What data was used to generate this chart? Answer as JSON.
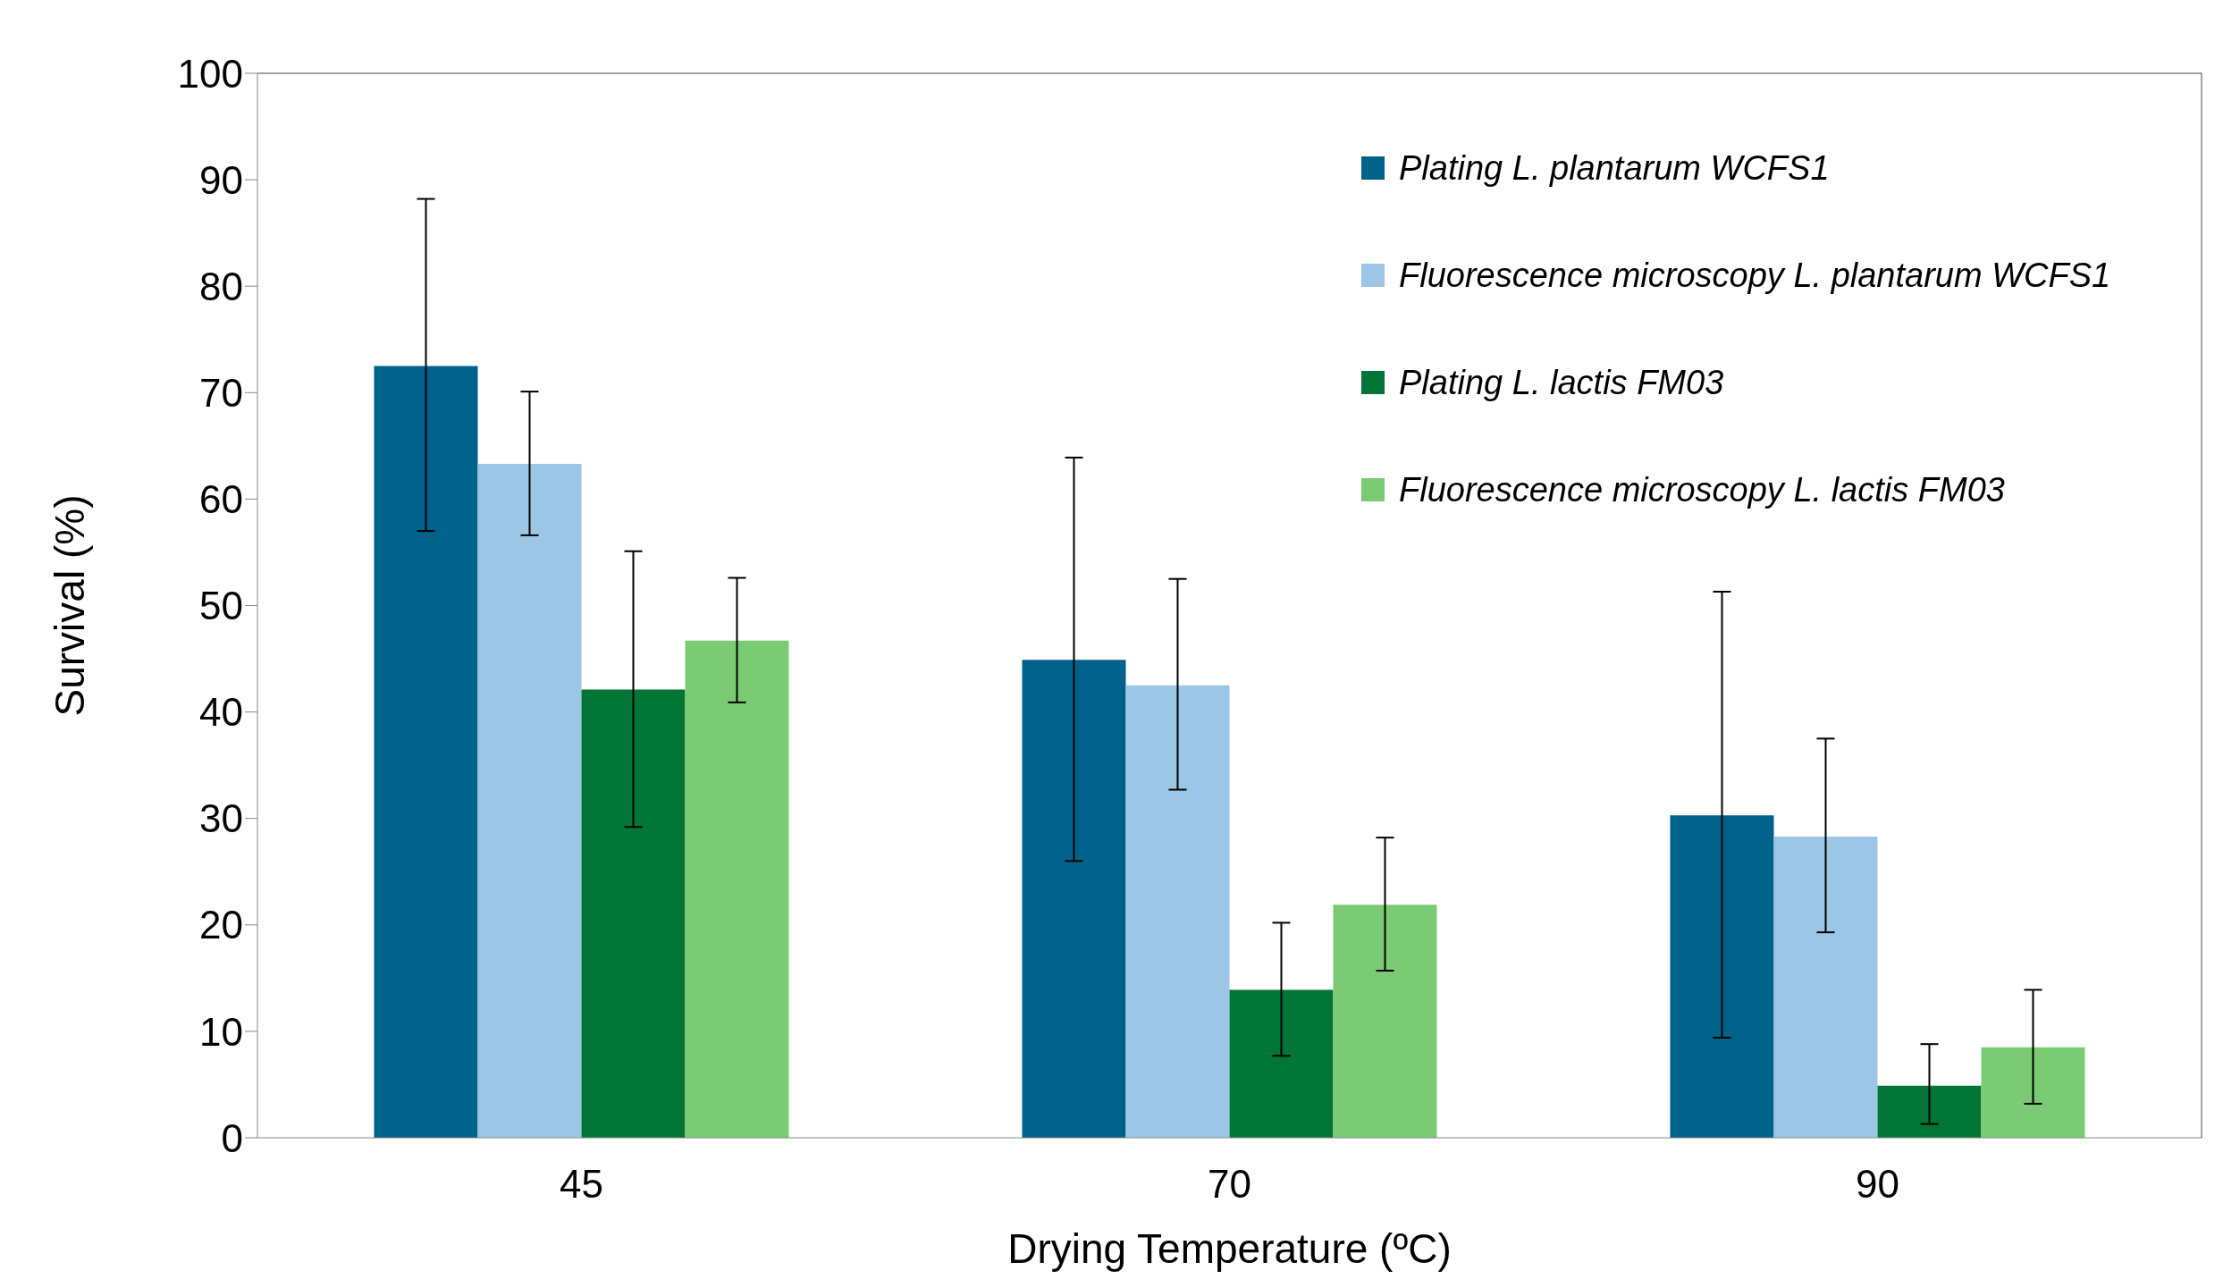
{
  "chart_data": {
    "type": "bar",
    "xlabel": "Drying Temperature (ºC)",
    "ylabel": "Survival (%)",
    "categories": [
      "45",
      "70",
      "90"
    ],
    "series": [
      {
        "name": "Plating L. plantarum WCFS1",
        "color": "#00628b",
        "values": [
          72.5,
          44.9,
          30.3
        ],
        "errors": [
          [
            57.0,
            88.2
          ],
          [
            26.0,
            63.9
          ],
          [
            9.4,
            51.3
          ]
        ]
      },
      {
        "name": "Fluorescence microscopy L. plantarum WCFS1",
        "color": "#9bc6e6",
        "values": [
          63.3,
          42.5,
          28.3
        ],
        "errors": [
          [
            56.6,
            70.1
          ],
          [
            32.7,
            52.5
          ],
          [
            19.3,
            37.5
          ]
        ]
      },
      {
        "name": "Plating L. lactis FM03",
        "color": "#007535",
        "values": [
          42.1,
          13.9,
          4.9
        ],
        "errors": [
          [
            29.2,
            55.1
          ],
          [
            7.7,
            20.2
          ],
          [
            1.3,
            8.8
          ]
        ]
      },
      {
        "name": "Fluorescence microscopy L. lactis FM03",
        "color": "#7acb74",
        "values": [
          46.7,
          21.9,
          8.5
        ],
        "errors": [
          [
            40.9,
            52.6
          ],
          [
            15.7,
            28.2
          ],
          [
            3.2,
            13.9
          ]
        ]
      }
    ],
    "ylim": [
      0,
      100
    ],
    "yticks": [
      0,
      10,
      20,
      30,
      40,
      50,
      60,
      70,
      80,
      90,
      100
    ],
    "grid": false,
    "legend": "top right"
  }
}
